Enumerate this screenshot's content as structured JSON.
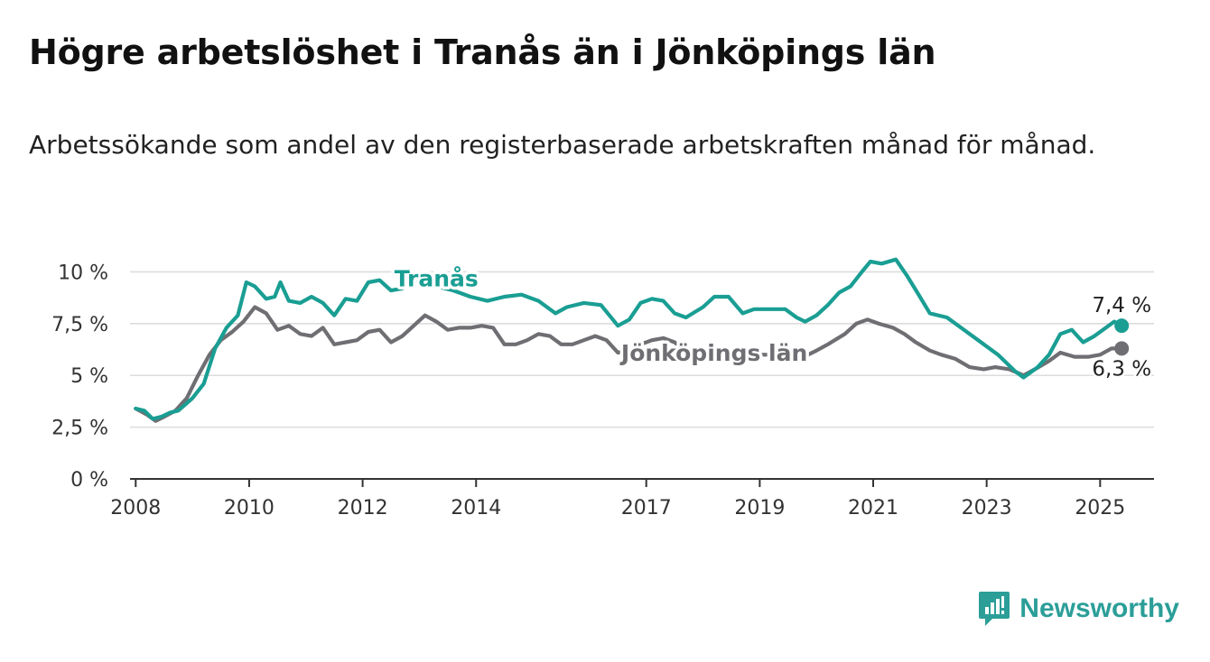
{
  "header": {
    "title": "Högre arbetslöshet i Tranås än i Jönköpings län",
    "subtitle": "Arbetssökande som andel av den registerbaserade arbetskraften månad för månad."
  },
  "brand": {
    "name": "Newsworthy",
    "icon": "newsworthy-logo-icon",
    "color": "#2b9e98"
  },
  "chart_data": {
    "type": "line",
    "title": "Högre arbetslöshet i Tranås än i Jönköpings län",
    "subtitle": "Arbetssökande som andel av den registerbaserade arbetskraften månad för månad.",
    "xlabel": "",
    "ylabel": "",
    "xlim": [
      2007.9,
      2025.95
    ],
    "ylim": [
      0,
      10.5
    ],
    "x_ticks": [
      {
        "value": 2008,
        "label": "2008"
      },
      {
        "value": 2010,
        "label": "2010"
      },
      {
        "value": 2012,
        "label": "2012"
      },
      {
        "value": 2014,
        "label": "2014"
      },
      {
        "value": 2017,
        "label": "2017"
      },
      {
        "value": 2019,
        "label": "2019"
      },
      {
        "value": 2021,
        "label": "2021"
      },
      {
        "value": 2023,
        "label": "2023"
      },
      {
        "value": 2025,
        "label": "2025"
      }
    ],
    "y_ticks": [
      {
        "value": 0,
        "label": "0 %"
      },
      {
        "value": 2.5,
        "label": "2,5 %"
      },
      {
        "value": 5,
        "label": "5 %"
      },
      {
        "value": 7.5,
        "label": "7,5 %"
      },
      {
        "value": 10,
        "label": "10 %"
      }
    ],
    "grid": true,
    "legend": "inline",
    "series": [
      {
        "name": "Tranås",
        "color": "#1a9e93",
        "label_at": [
          2013.3,
          9.3
        ],
        "end_label": "7,4 %",
        "points": [
          [
            2008.0,
            3.4
          ],
          [
            2008.15,
            3.3
          ],
          [
            2008.3,
            2.9
          ],
          [
            2008.45,
            3.0
          ],
          [
            2008.6,
            3.2
          ],
          [
            2008.75,
            3.3
          ],
          [
            2009.0,
            3.9
          ],
          [
            2009.2,
            4.6
          ],
          [
            2009.4,
            6.3
          ],
          [
            2009.6,
            7.3
          ],
          [
            2009.8,
            7.9
          ],
          [
            2009.95,
            9.5
          ],
          [
            2010.1,
            9.3
          ],
          [
            2010.3,
            8.7
          ],
          [
            2010.45,
            8.8
          ],
          [
            2010.55,
            9.5
          ],
          [
            2010.7,
            8.6
          ],
          [
            2010.9,
            8.5
          ],
          [
            2011.1,
            8.8
          ],
          [
            2011.3,
            8.5
          ],
          [
            2011.5,
            7.9
          ],
          [
            2011.7,
            8.7
          ],
          [
            2011.9,
            8.6
          ],
          [
            2012.1,
            9.5
          ],
          [
            2012.3,
            9.6
          ],
          [
            2012.5,
            9.1
          ],
          [
            2012.7,
            9.2
          ],
          [
            2012.9,
            9.6
          ],
          [
            2013.1,
            9.5
          ],
          [
            2013.3,
            9.3
          ],
          [
            2013.6,
            9.1
          ],
          [
            2013.9,
            8.8
          ],
          [
            2014.2,
            8.6
          ],
          [
            2014.5,
            8.8
          ],
          [
            2014.8,
            8.9
          ],
          [
            2015.1,
            8.6
          ],
          [
            2015.4,
            8.0
          ],
          [
            2015.6,
            8.3
          ],
          [
            2015.9,
            8.5
          ],
          [
            2016.2,
            8.4
          ],
          [
            2016.5,
            7.4
          ],
          [
            2016.7,
            7.7
          ],
          [
            2016.9,
            8.5
          ],
          [
            2017.1,
            8.7
          ],
          [
            2017.3,
            8.6
          ],
          [
            2017.5,
            8.0
          ],
          [
            2017.7,
            7.8
          ],
          [
            2018.0,
            8.3
          ],
          [
            2018.2,
            8.8
          ],
          [
            2018.45,
            8.8
          ],
          [
            2018.7,
            8.0
          ],
          [
            2018.9,
            8.2
          ],
          [
            2019.2,
            8.2
          ],
          [
            2019.45,
            8.2
          ],
          [
            2019.65,
            7.8
          ],
          [
            2019.8,
            7.6
          ],
          [
            2020.0,
            7.9
          ],
          [
            2020.2,
            8.4
          ],
          [
            2020.4,
            9.0
          ],
          [
            2020.6,
            9.3
          ],
          [
            2020.8,
            10.0
          ],
          [
            2020.95,
            10.5
          ],
          [
            2021.15,
            10.4
          ],
          [
            2021.4,
            10.6
          ],
          [
            2021.6,
            9.8
          ],
          [
            2021.8,
            8.9
          ],
          [
            2022.0,
            8.0
          ],
          [
            2022.3,
            7.8
          ],
          [
            2022.6,
            7.2
          ],
          [
            2022.9,
            6.6
          ],
          [
            2023.2,
            6.0
          ],
          [
            2023.5,
            5.2
          ],
          [
            2023.65,
            4.9
          ],
          [
            2023.9,
            5.4
          ],
          [
            2024.1,
            6.0
          ],
          [
            2024.3,
            7.0
          ],
          [
            2024.5,
            7.2
          ],
          [
            2024.7,
            6.6
          ],
          [
            2024.9,
            6.9
          ],
          [
            2025.1,
            7.3
          ],
          [
            2025.25,
            7.6
          ],
          [
            2025.38,
            7.4
          ]
        ]
      },
      {
        "name": "Jönköpings län",
        "color": "#6f6e72",
        "label_at": [
          2018.2,
          5.7
        ],
        "end_label": "6,3 %",
        "points": [
          [
            2008.0,
            3.4
          ],
          [
            2008.2,
            3.1
          ],
          [
            2008.35,
            2.8
          ],
          [
            2008.5,
            3.0
          ],
          [
            2008.7,
            3.3
          ],
          [
            2008.9,
            3.9
          ],
          [
            2009.1,
            5.0
          ],
          [
            2009.3,
            6.0
          ],
          [
            2009.5,
            6.7
          ],
          [
            2009.7,
            7.1
          ],
          [
            2009.9,
            7.6
          ],
          [
            2010.1,
            8.3
          ],
          [
            2010.3,
            8.0
          ],
          [
            2010.5,
            7.2
          ],
          [
            2010.7,
            7.4
          ],
          [
            2010.9,
            7.0
          ],
          [
            2011.1,
            6.9
          ],
          [
            2011.3,
            7.3
          ],
          [
            2011.5,
            6.5
          ],
          [
            2011.7,
            6.6
          ],
          [
            2011.9,
            6.7
          ],
          [
            2012.1,
            7.1
          ],
          [
            2012.3,
            7.2
          ],
          [
            2012.5,
            6.6
          ],
          [
            2012.7,
            6.9
          ],
          [
            2012.9,
            7.4
          ],
          [
            2013.1,
            7.9
          ],
          [
            2013.3,
            7.6
          ],
          [
            2013.5,
            7.2
          ],
          [
            2013.7,
            7.3
          ],
          [
            2013.9,
            7.3
          ],
          [
            2014.1,
            7.4
          ],
          [
            2014.3,
            7.3
          ],
          [
            2014.5,
            6.5
          ],
          [
            2014.7,
            6.5
          ],
          [
            2014.9,
            6.7
          ],
          [
            2015.1,
            7.0
          ],
          [
            2015.3,
            6.9
          ],
          [
            2015.5,
            6.5
          ],
          [
            2015.7,
            6.5
          ],
          [
            2015.9,
            6.7
          ],
          [
            2016.1,
            6.9
          ],
          [
            2016.3,
            6.7
          ],
          [
            2016.5,
            6.1
          ],
          [
            2016.7,
            6.2
          ],
          [
            2016.9,
            6.5
          ],
          [
            2017.1,
            6.7
          ],
          [
            2017.3,
            6.8
          ],
          [
            2017.5,
            6.6
          ],
          [
            2017.7,
            6.1
          ],
          [
            2018.0,
            6.2
          ],
          [
            2018.3,
            6.0
          ],
          [
            2018.6,
            5.9
          ],
          [
            2018.9,
            6.0
          ],
          [
            2019.2,
            6.0
          ],
          [
            2019.5,
            5.9
          ],
          [
            2019.7,
            5.8
          ],
          [
            2019.85,
            6.0
          ],
          [
            2020.0,
            6.2
          ],
          [
            2020.2,
            6.5
          ],
          [
            2020.5,
            7.0
          ],
          [
            2020.7,
            7.5
          ],
          [
            2020.9,
            7.7
          ],
          [
            2021.1,
            7.5
          ],
          [
            2021.35,
            7.3
          ],
          [
            2021.55,
            7.0
          ],
          [
            2021.75,
            6.6
          ],
          [
            2022.0,
            6.2
          ],
          [
            2022.2,
            6.0
          ],
          [
            2022.45,
            5.8
          ],
          [
            2022.7,
            5.4
          ],
          [
            2022.95,
            5.3
          ],
          [
            2023.15,
            5.4
          ],
          [
            2023.4,
            5.3
          ],
          [
            2023.65,
            5.0
          ],
          [
            2023.85,
            5.3
          ],
          [
            2024.1,
            5.7
          ],
          [
            2024.3,
            6.1
          ],
          [
            2024.55,
            5.9
          ],
          [
            2024.8,
            5.9
          ],
          [
            2025.0,
            6.0
          ],
          [
            2025.2,
            6.3
          ],
          [
            2025.38,
            6.3
          ]
        ]
      }
    ]
  }
}
